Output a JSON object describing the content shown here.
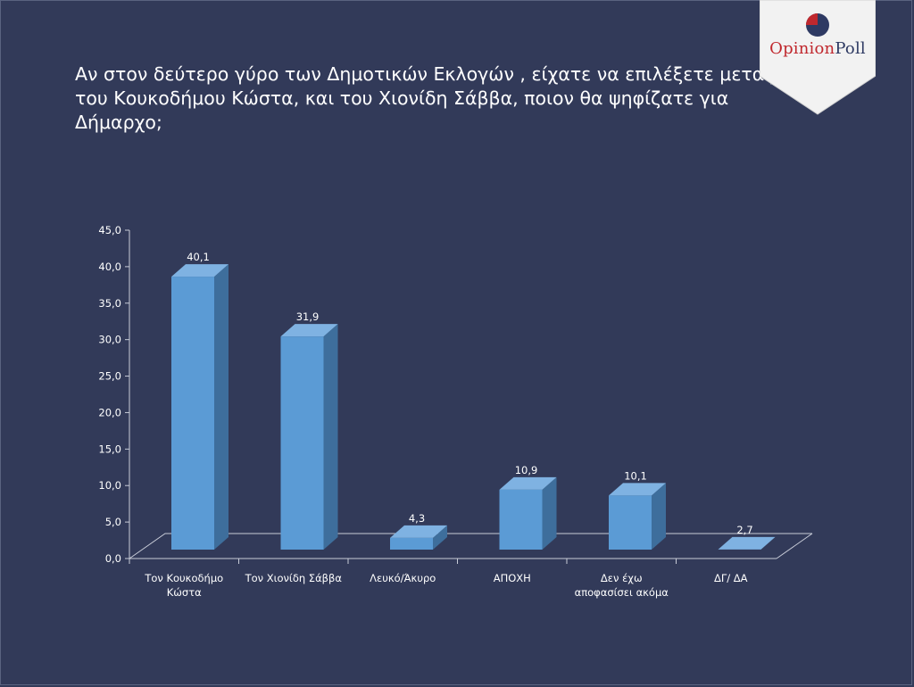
{
  "title_lines": [
    "Αν στον δεύτερο γύρο των Δημοτικών Εκλογών , είχατε να επιλέξετε μεταξύ",
    "του Κουκοδήμου Κώστα, και του  Χιονίδη Σάββα, ποιον θα ψηφίζατε  για",
    "Δήμαρχο;"
  ],
  "logo": {
    "part1": "Opinion",
    "part2": "Poll"
  },
  "colors": {
    "background": "#323a59",
    "bar_front": "#5b9bd5",
    "bar_side": "#3e6e9c",
    "bar_top": "#7fb2e2",
    "logo_red": "#c0282e",
    "logo_navy": "#2e3a63"
  },
  "chart_data": {
    "type": "bar",
    "categories": [
      [
        "Τον Κουκοδήμο",
        "Κώστα"
      ],
      [
        "Τον Χιονίδη Σάββα"
      ],
      [
        "Λευκό/Άκυρο"
      ],
      [
        "ΑΠΟΧΗ"
      ],
      [
        "Δεν έχω",
        "αποφασίσει ακόμα"
      ],
      [
        "ΔΓ/ ΔΑ"
      ]
    ],
    "values": [
      40.1,
      31.9,
      4.3,
      10.9,
      10.1,
      2.7
    ],
    "data_labels": [
      "40,1",
      "31,9",
      "4,3",
      "10,9",
      "10,1",
      "2,7"
    ],
    "title": "",
    "xlabel": "",
    "ylabel": "",
    "ylim": [
      0,
      45
    ],
    "yticks": [
      0,
      5,
      10,
      15,
      20,
      25,
      30,
      35,
      40,
      45
    ],
    "ytick_labels": [
      "0,0",
      "5,0",
      "10,0",
      "15,0",
      "20,0",
      "25,0",
      "30,0",
      "35,0",
      "40,0",
      "45,0"
    ],
    "grid": false,
    "legend": "none",
    "style": "3d-column"
  }
}
